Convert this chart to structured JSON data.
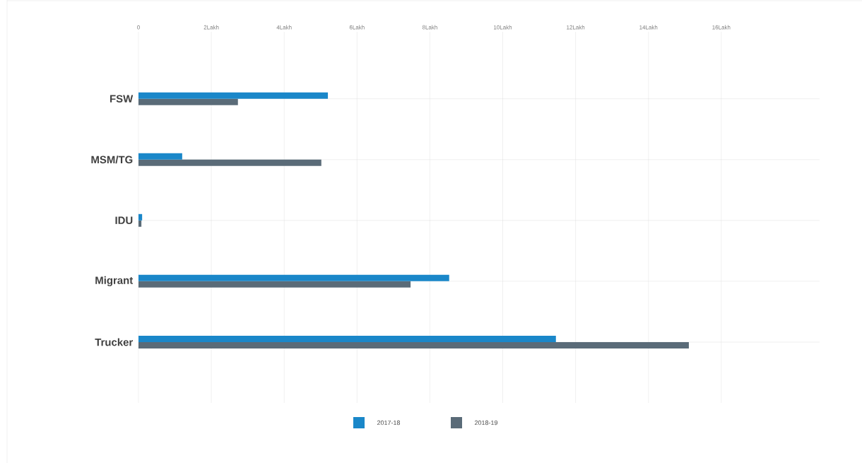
{
  "chart_data": {
    "type": "bar",
    "orientation": "horizontal",
    "categories": [
      "FSW",
      "MSM/TG",
      "IDU",
      "Migrant",
      "Trucker"
    ],
    "series": [
      {
        "name": "2017-18",
        "color": "#1a87c9",
        "values": [
          5.2,
          1.2,
          0.1,
          8.53,
          11.46
        ]
      },
      {
        "name": "2018-19",
        "color": "#5a6b78",
        "values": [
          2.73,
          5.02,
          0.08,
          7.47,
          15.11
        ]
      }
    ],
    "xlim": [
      0,
      18.7
    ],
    "xticks": [
      0,
      {
        "value": 2,
        "label": "2Lakh"
      },
      {
        "value": 4,
        "label": "4Lakh"
      },
      {
        "value": 6,
        "label": "6Lakh"
      },
      {
        "value": 8,
        "label": "8Lakh"
      },
      {
        "value": 10,
        "label": "10Lakh"
      },
      {
        "value": 12,
        "label": "12Lakh"
      },
      {
        "value": 14,
        "label": "14Lakh"
      },
      {
        "value": 16,
        "label": "16Lakh"
      }
    ],
    "grid": true,
    "legend": "bottom"
  }
}
